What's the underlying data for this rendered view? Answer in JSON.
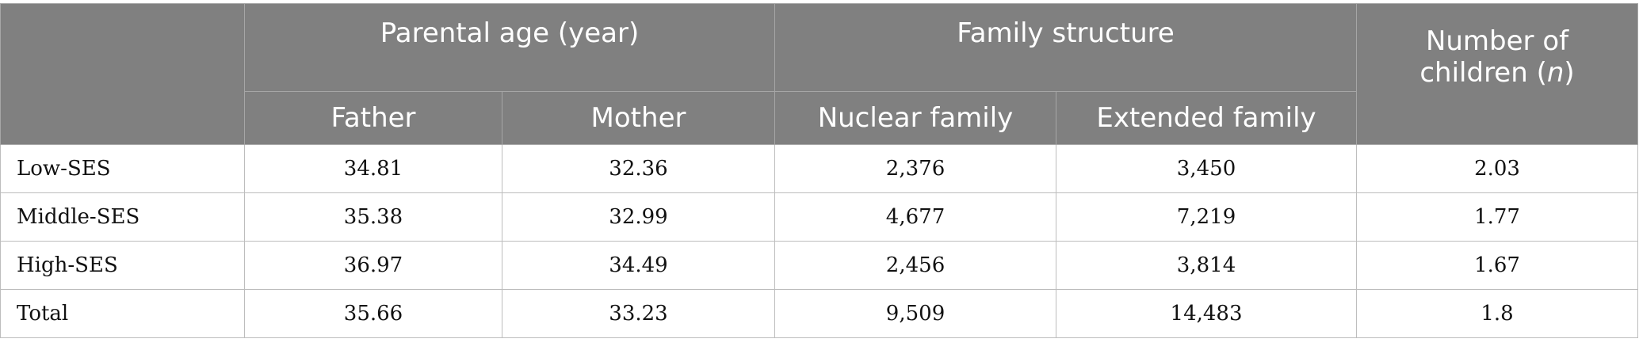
{
  "header": {
    "parental_age": "Parental age (year)",
    "family_structure": "Family structure",
    "number_children_line1": "Number of",
    "number_children_line2": "children (",
    "number_children_n": "n",
    "number_children_close": ")",
    "father": "Father",
    "mother": "Mother",
    "nuclear": "Nuclear family",
    "extended": "Extended family"
  },
  "rows": [
    {
      "label": "Low-SES",
      "father": "34.81",
      "mother": "32.36",
      "nuclear": "2,376",
      "extended": "3,450",
      "children": "2.03"
    },
    {
      "label": "Middle-SES",
      "father": "35.38",
      "mother": "32.99",
      "nuclear": "4,677",
      "extended": "7,219",
      "children": "1.77"
    },
    {
      "label": "High-SES",
      "father": "36.97",
      "mother": "34.49",
      "nuclear": "2,456",
      "extended": "3,814",
      "children": "1.67"
    },
    {
      "label": "Total",
      "father": "35.66",
      "mother": "33.23",
      "nuclear": "9,509",
      "extended": "14,483",
      "children": "1.8"
    }
  ]
}
